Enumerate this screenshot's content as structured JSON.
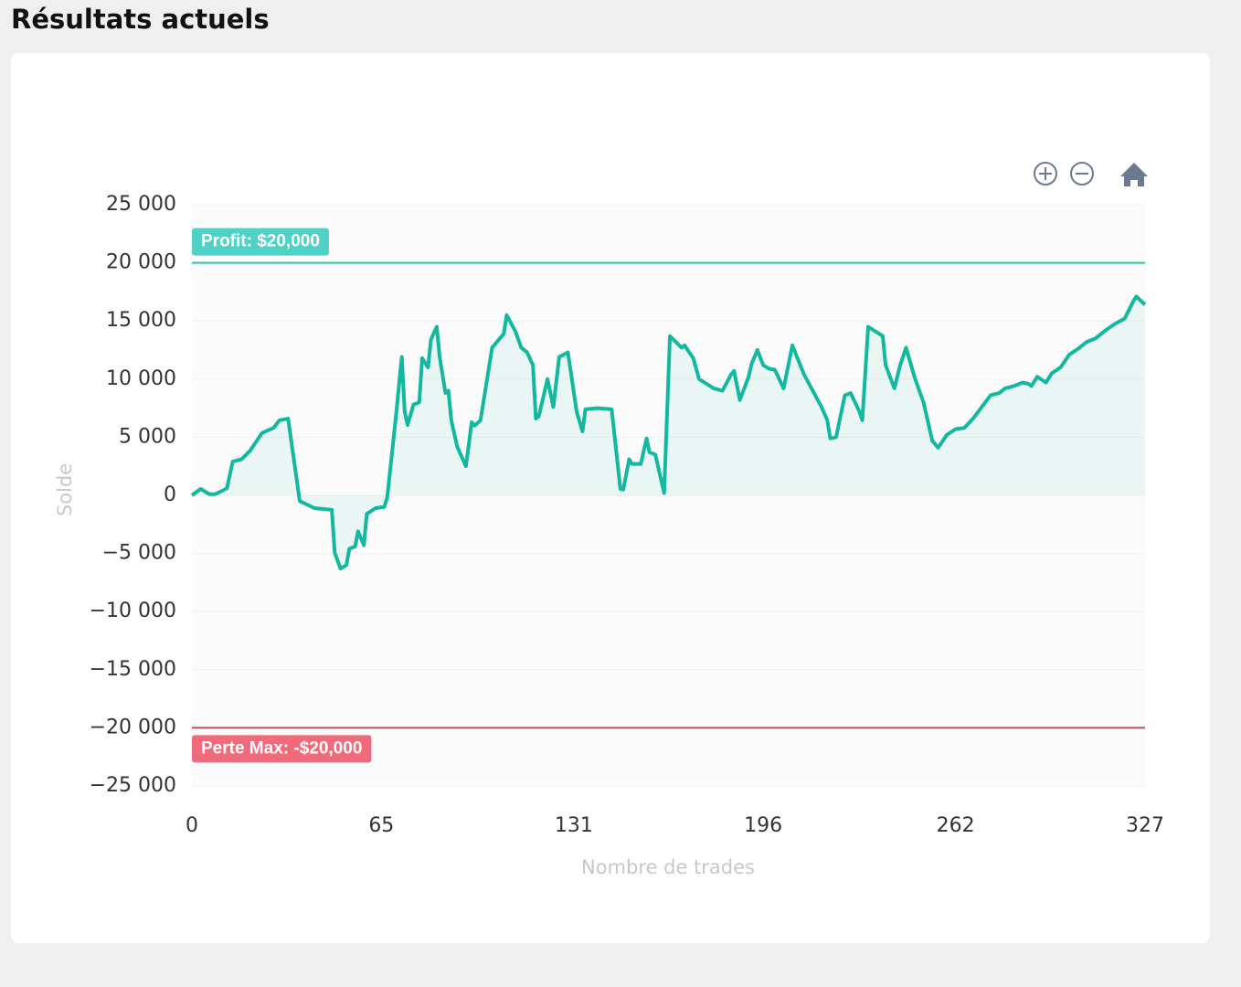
{
  "page_title": "Résultats actuels",
  "chart_data": {
    "type": "line",
    "x_label": "Nombre de trades",
    "y_label": "Solde",
    "xlim": [
      0,
      327
    ],
    "xticks": [
      0,
      65,
      131,
      196,
      262,
      327
    ],
    "ylim": [
      -25000,
      25000
    ],
    "yticks": [
      {
        "value": -25000,
        "label": "−25 000"
      },
      {
        "value": -20000,
        "label": "−20 000"
      },
      {
        "value": -15000,
        "label": "−15 000"
      },
      {
        "value": -10000,
        "label": "−10 000"
      },
      {
        "value": -5000,
        "label": "−5 000"
      },
      0,
      {
        "value": 5000,
        "label": "5 000"
      },
      {
        "value": 10000,
        "label": "10 000"
      },
      {
        "value": 15000,
        "label": "15 000"
      },
      {
        "value": 20000,
        "label": "20 000"
      },
      {
        "value": 25000,
        "label": "25 000"
      }
    ],
    "grid": true,
    "annotations": [
      {
        "y": 20000,
        "label": "Profit: $20,000",
        "color": "#2ec4a7",
        "label_color": "#4fd1c5",
        "position": "above"
      },
      {
        "y": -20000,
        "label": "Perte Max: -$20,000",
        "color": "#b5505c",
        "label_color": "#f06a7a",
        "position": "below"
      }
    ],
    "series": [
      {
        "name": "Solde",
        "color": "#12b8a0",
        "x": [
          0,
          3,
          6,
          8,
          12,
          14,
          17,
          20,
          24,
          28,
          30,
          33,
          37,
          42,
          48,
          49,
          51,
          53,
          54,
          56,
          57,
          59,
          60,
          63,
          66,
          67,
          70,
          72,
          73,
          74,
          76,
          78,
          79,
          81,
          82,
          84,
          85,
          87,
          88,
          89,
          91,
          94,
          96,
          97,
          99,
          100,
          103,
          107,
          108,
          111,
          113,
          115,
          117,
          118,
          119,
          122,
          124,
          126,
          129,
          132,
          134,
          135,
          139,
          144,
          147,
          148,
          150,
          151,
          154,
          156,
          157,
          159,
          162,
          164,
          168,
          169,
          172,
          174,
          179,
          182,
          185,
          186,
          188,
          191,
          192,
          194,
          196,
          198,
          200,
          203,
          206,
          210,
          213,
          216,
          218,
          219,
          221,
          224,
          226,
          229,
          230,
          232,
          237,
          238,
          241,
          243,
          245,
          248,
          251,
          254,
          256,
          259,
          262,
          265,
          268,
          271,
          274,
          277,
          279,
          282,
          285,
          287,
          288,
          290,
          293,
          295,
          298,
          301,
          304,
          307,
          310,
          314,
          317,
          320,
          323,
          324,
          327
        ],
        "values": [
          0,
          550,
          100,
          100,
          600,
          2900,
          3100,
          3850,
          5350,
          5800,
          6450,
          6600,
          -500,
          -1100,
          -1250,
          -4950,
          -6300,
          -6000,
          -4600,
          -4400,
          -3100,
          -4300,
          -1600,
          -1100,
          -1000,
          -200,
          6800,
          11900,
          7200,
          6050,
          7800,
          8000,
          11800,
          11000,
          13400,
          14500,
          11900,
          8800,
          9000,
          6450,
          4200,
          2500,
          6300,
          6000,
          6450,
          8000,
          12700,
          13900,
          15500,
          14100,
          12700,
          12300,
          11200,
          6600,
          6800,
          10000,
          7600,
          11900,
          12300,
          7200,
          5500,
          7400,
          7500,
          7400,
          550,
          500,
          3100,
          2700,
          2700,
          4900,
          3700,
          3500,
          200,
          13700,
          12700,
          12900,
          11800,
          10000,
          9200,
          9000,
          10400,
          10700,
          8200,
          10200,
          11300,
          12500,
          11200,
          10900,
          10800,
          9200,
          12900,
          10400,
          9000,
          7600,
          6450,
          4900,
          5000,
          8600,
          8800,
          7200,
          6450,
          14500,
          13700,
          11200,
          9200,
          11200,
          12700,
          10100,
          8000,
          4700,
          4100,
          5200,
          5700,
          5800,
          6600,
          7600,
          8600,
          8800,
          9200,
          9400,
          9700,
          9600,
          9400,
          10200,
          9700,
          10500,
          11000,
          12100,
          12600,
          13200,
          13500,
          14300,
          14800,
          15200,
          16700,
          17100,
          16400
        ]
      }
    ]
  }
}
